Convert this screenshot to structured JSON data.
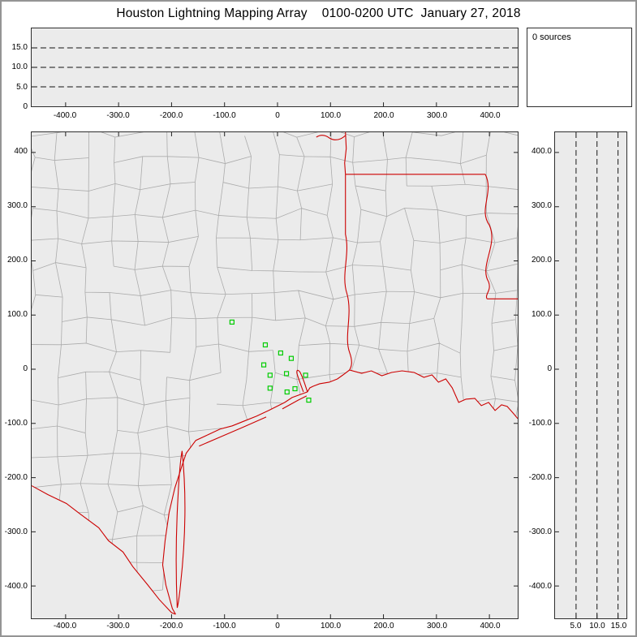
{
  "title": "Houston Lightning Mapping Array    0100-0200 UTC  January 27, 2018",
  "sources_panel": {
    "label": "0 sources"
  },
  "axes": {
    "ew_ticks": [
      {
        "v": -400,
        "label": "-400.0"
      },
      {
        "v": -300,
        "label": "-300.0"
      },
      {
        "v": -200,
        "label": "-200.0"
      },
      {
        "v": -100,
        "label": "-100.0"
      },
      {
        "v": 0,
        "label": "0"
      },
      {
        "v": 100,
        "label": "100.0"
      },
      {
        "v": 200,
        "label": "200.0"
      },
      {
        "v": 300,
        "label": "300.0"
      },
      {
        "v": 400,
        "label": "400.0"
      }
    ],
    "ns_ticks_map": [
      {
        "v": 400,
        "label": "400"
      },
      {
        "v": 300,
        "label": "300.0"
      },
      {
        "v": 200,
        "label": "200.0"
      },
      {
        "v": 100,
        "label": "100.0"
      },
      {
        "v": 0,
        "label": "0"
      },
      {
        "v": -100,
        "label": "-100.0"
      },
      {
        "v": -200,
        "label": "-200.0"
      },
      {
        "v": -300,
        "label": "-300.0"
      },
      {
        "v": -400,
        "label": "-400.0"
      }
    ],
    "ns_ticks_alt": [
      {
        "v": 400,
        "label": "400.0"
      },
      {
        "v": 300,
        "label": "300.0"
      },
      {
        "v": 200,
        "label": "200.0"
      },
      {
        "v": 100,
        "label": "100.0"
      },
      {
        "v": 0,
        "label": "0"
      },
      {
        "v": -100,
        "label": "-100.0"
      },
      {
        "v": -200,
        "label": "-200.0"
      },
      {
        "v": -300,
        "label": "-300.0"
      },
      {
        "v": -400,
        "label": "-400.0"
      }
    ],
    "alt_ticks_ew": [
      {
        "v": 15,
        "label": "15.0"
      },
      {
        "v": 10,
        "label": "10.0"
      },
      {
        "v": 5,
        "label": "5.0"
      },
      {
        "v": 0,
        "label": "0"
      }
    ],
    "alt_ticks_ns": [
      {
        "v": 5,
        "label": "5.0"
      },
      {
        "v": 10,
        "label": "10.0"
      },
      {
        "v": 15,
        "label": "15.0"
      }
    ],
    "alt_gridlines": [
      5,
      10,
      15
    ]
  },
  "colors": {
    "panel_bg": "#ebebeb",
    "county_line": "#ababab",
    "state_line": "#cc0000",
    "station": "#00cc00",
    "axis": "#222222",
    "frame": "#949494"
  },
  "chart_data": {
    "type": "scatter",
    "title": "Houston Lightning Mapping Array 0100-0200 UTC January 27, 2018",
    "source_count": 0,
    "stations_km": [
      [
        -86,
        87
      ],
      [
        -23,
        45
      ],
      [
        6,
        30
      ],
      [
        26,
        20
      ],
      [
        -26,
        8
      ],
      [
        -14,
        -11
      ],
      [
        17,
        -8
      ],
      [
        53,
        -11
      ],
      [
        -14,
        -35
      ],
      [
        18,
        -42
      ],
      [
        33,
        -36
      ],
      [
        59,
        -57
      ]
    ],
    "panels": [
      {
        "name": "altitude-vs-east-west",
        "xlim": [
          -464,
          453
        ],
        "ylim": [
          0,
          20
        ],
        "x_ticks": [
          -400,
          -300,
          -200,
          -100,
          0,
          100,
          200,
          300,
          400
        ],
        "y_ticks": [
          0,
          5,
          10,
          15
        ],
        "gridlines_y": [
          5,
          10,
          15
        ],
        "series": [
          {
            "name": "lightning-sources",
            "points": []
          }
        ]
      },
      {
        "name": "plan-view-map",
        "xlim": [
          -464,
          453
        ],
        "ylim": [
          -459,
          437
        ],
        "x_ticks": [
          -400,
          -300,
          -200,
          -100,
          0,
          100,
          200,
          300,
          400
        ],
        "y_ticks": [
          400,
          300,
          200,
          100,
          0,
          -100,
          -200,
          -300,
          -400
        ],
        "series": [
          {
            "name": "lma-stations",
            "marker": "open-square",
            "color": "#00cc00",
            "points_ref": "stations_km"
          },
          {
            "name": "lightning-sources",
            "points": []
          }
        ]
      },
      {
        "name": "altitude-vs-north-south",
        "xlim": [
          0,
          17
        ],
        "ylim": [
          -459,
          437
        ],
        "x_ticks": [
          5,
          10,
          15
        ],
        "y_ticks": [
          400,
          300,
          200,
          100,
          0,
          -100,
          -200,
          -300,
          -400
        ],
        "gridlines_x": [
          5,
          10,
          15
        ],
        "series": [
          {
            "name": "lightning-sources",
            "points": []
          }
        ]
      }
    ]
  }
}
